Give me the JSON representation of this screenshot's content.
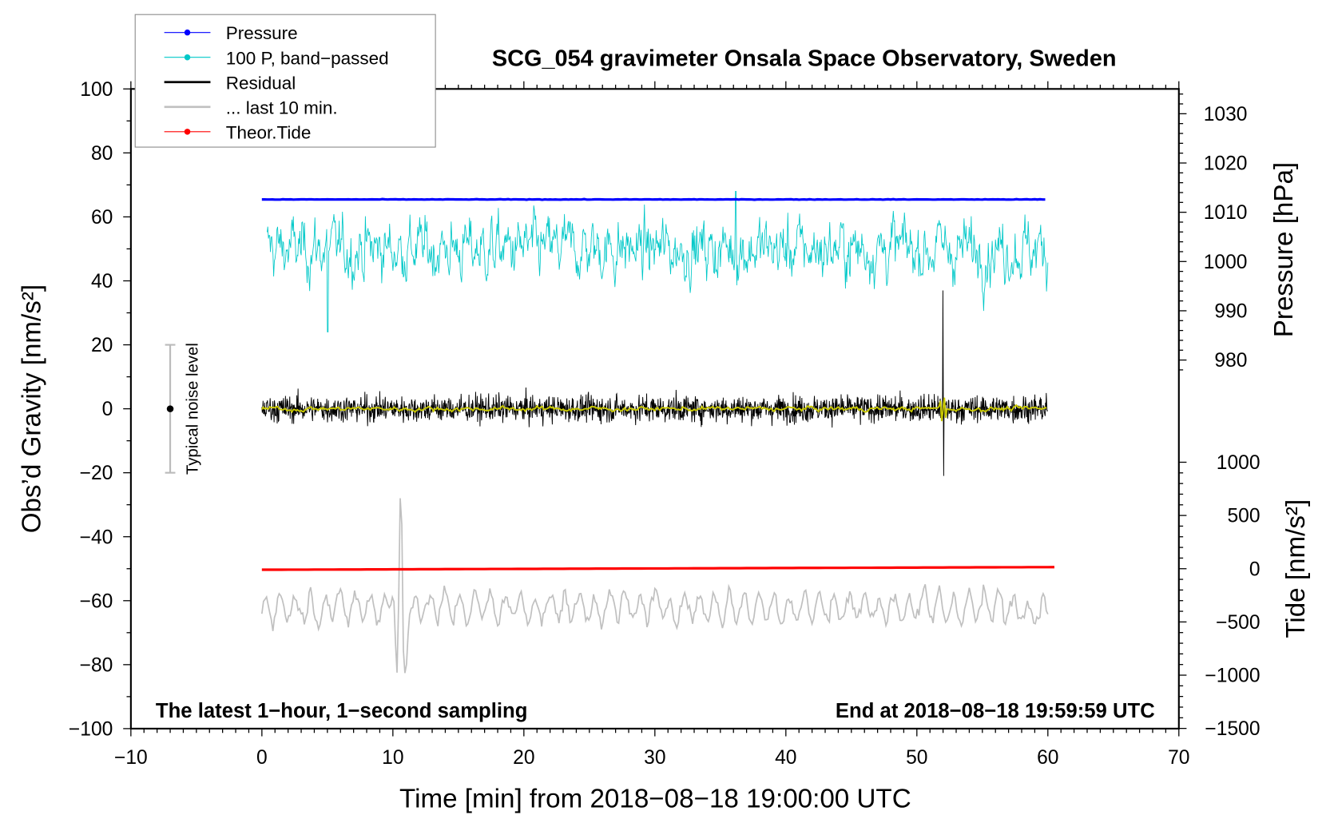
{
  "chart_data": {
    "type": "line",
    "title": "SCG_054 gravimeter Onsala Space Observatory, Sweden",
    "xlabel": "Time [min] from 2018−08−18 19:00:00 UTC",
    "ylabel": "Obs’d Gravity [nm/s²]",
    "ylabel_pressure": "Pressure [hPa]",
    "ylabel_tide": "Tide [nm/s²]",
    "xlim": [
      -10,
      70
    ],
    "ylim": [
      -100,
      100
    ],
    "pressure_lim": [
      980,
      1030
    ],
    "tide_lim": [
      -1500,
      1000
    ],
    "xticks": [
      "−10",
      "0",
      "10",
      "20",
      "30",
      "40",
      "50",
      "60",
      "70"
    ],
    "yticks": [
      "100",
      "80",
      "60",
      "40",
      "20",
      "0",
      "−20",
      "−40",
      "−60",
      "−80",
      "−100"
    ],
    "pressure_ticks": [
      "1030",
      "1020",
      "1010",
      "1000",
      "990",
      "980"
    ],
    "tide_ticks": [
      "1000",
      "500",
      "0",
      "−500",
      "−1000",
      "−1500"
    ],
    "annotation_left": "The latest 1−hour, 1−second sampling",
    "annotation_right": "End at 2018−08−18 19:59:59 UTC",
    "noise_label": "Typical noise level",
    "noise_level": {
      "x": -7,
      "center": 0,
      "range": [
        -20,
        20
      ]
    },
    "legend": {
      "placement": "top-left",
      "entries": [
        {
          "label": "Pressure",
          "color": "#0000ff"
        },
        {
          "label": "100 P, band−passed",
          "color": "#00c8c8"
        },
        {
          "label": "Residual",
          "color": "#000000"
        },
        {
          "label": "... last 10 min.",
          "color": "#c0c0c0"
        },
        {
          "label": "Theor.Tide",
          "color": "#ff0000"
        }
      ]
    },
    "series": [
      {
        "name": "Pressure",
        "axis": "pressure",
        "x_range": [
          0,
          60
        ],
        "value_start": 1012.6,
        "value_end": 1012.6,
        "color": "#0000ff"
      },
      {
        "name": "100 P, band-passed",
        "axis": "gravity",
        "x_range": [
          0,
          60
        ],
        "mean": 50,
        "typical_amplitude": 8,
        "max": 68,
        "min": 24,
        "color": "#00c8c8"
      },
      {
        "name": "Residual",
        "axis": "gravity",
        "x_range": [
          0,
          60
        ],
        "mean": 0,
        "typical_amplitude": 8,
        "spike": {
          "x": 52,
          "max": 37,
          "min": -21
        },
        "color": "#000000"
      },
      {
        "name": "Residual smoothed",
        "axis": "gravity",
        "x_range": [
          0,
          60
        ],
        "mean": 0,
        "typical_amplitude": 1.5,
        "color": "#c8c800"
      },
      {
        "name": "... last 10 min.",
        "axis": "gravity",
        "x_range": [
          0,
          60
        ],
        "mean": -62,
        "typical_amplitude": 7,
        "spike": {
          "x": 10.6,
          "max": -25,
          "min": -83
        },
        "color": "#c0c0c0"
      },
      {
        "name": "Theor.Tide",
        "axis": "tide",
        "x_range": [
          0,
          60.5
        ],
        "value_start": -10,
        "value_end": 15,
        "color": "#ff0000"
      }
    ]
  }
}
